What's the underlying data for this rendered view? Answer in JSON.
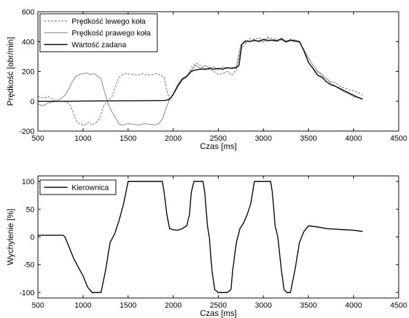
{
  "chart_data": [
    {
      "type": "line",
      "xlabel": "Czas [ms]",
      "ylabel": "Prędkość [obr/min]",
      "xlim": [
        500,
        4500
      ],
      "ylim": [
        -200,
        600
      ],
      "xticks": [
        500,
        1000,
        1500,
        2000,
        2500,
        3000,
        3500,
        4000,
        4500
      ],
      "yticks": [
        -200,
        0,
        200,
        400,
        600
      ],
      "grid": false,
      "legend_position": "top-left",
      "series": [
        {
          "name": "Prędkość lewego koła",
          "color": "#808080",
          "dash": "dashed",
          "x": [
            500,
            560,
            620,
            700,
            780,
            820,
            860,
            900,
            940,
            980,
            1020,
            1060,
            1100,
            1140,
            1180,
            1230,
            1280,
            1330,
            1360,
            1400,
            1440,
            1480,
            1540,
            1600,
            1660,
            1720,
            1780,
            1820,
            1860,
            1900,
            1930,
            1960,
            2000,
            2050,
            2100,
            2150,
            2200,
            2250,
            2300,
            2350,
            2400,
            2450,
            2500,
            2550,
            2600,
            2650,
            2700,
            2750,
            2800,
            2850,
            2900,
            2950,
            3000,
            3050,
            3100,
            3150,
            3200,
            3250,
            3300,
            3350,
            3400,
            3450,
            3500,
            3550,
            3600,
            3650,
            3700,
            3750,
            3800,
            3850,
            3900,
            3950,
            4000,
            4050,
            4100
          ],
          "y": [
            35,
            20,
            30,
            0,
            0,
            -5,
            -30,
            -90,
            -145,
            -155,
            -160,
            -140,
            -160,
            -145,
            -120,
            -30,
            5,
            40,
            100,
            160,
            180,
            185,
            180,
            175,
            185,
            175,
            180,
            185,
            175,
            160,
            70,
            10,
            50,
            110,
            150,
            165,
            220,
            255,
            240,
            210,
            215,
            200,
            180,
            185,
            200,
            175,
            210,
            350,
            385,
            420,
            415,
            425,
            405,
            430,
            420,
            410,
            415,
            400,
            415,
            410,
            400,
            330,
            260,
            220,
            195,
            185,
            150,
            130,
            125,
            100,
            90,
            75,
            70,
            60,
            40
          ]
        },
        {
          "name": "Prędkość prawego koła",
          "color": "#969696",
          "dash": "solid",
          "x": [
            500,
            560,
            620,
            700,
            760,
            800,
            840,
            880,
            920,
            960,
            1000,
            1040,
            1080,
            1120,
            1160,
            1200,
            1240,
            1280,
            1320,
            1360,
            1400,
            1440,
            1500,
            1560,
            1620,
            1680,
            1740,
            1800,
            1840,
            1880,
            1920,
            1950,
            2000,
            2050,
            2100,
            2150,
            2200,
            2250,
            2300,
            2350,
            2400,
            2450,
            2500,
            2550,
            2600,
            2650,
            2700,
            2750,
            2800,
            2850,
            2900,
            2950,
            3000,
            3050,
            3100,
            3150,
            3200,
            3250,
            3300,
            3350,
            3400,
            3450,
            3500,
            3550,
            3600,
            3650,
            3700,
            3750,
            3800,
            3850,
            3900,
            3950,
            4000,
            4050,
            4100
          ],
          "y": [
            -20,
            -30,
            -10,
            0,
            20,
            40,
            80,
            130,
            165,
            180,
            185,
            190,
            180,
            185,
            170,
            150,
            60,
            -20,
            -70,
            -110,
            -155,
            -160,
            -150,
            -155,
            -160,
            -150,
            -155,
            -160,
            -150,
            -120,
            -50,
            0,
            45,
            115,
            155,
            170,
            205,
            240,
            220,
            240,
            225,
            230,
            210,
            230,
            220,
            225,
            230,
            380,
            395,
            405,
            400,
            410,
            395,
            420,
            405,
            400,
            410,
            395,
            405,
            400,
            395,
            340,
            290,
            240,
            205,
            170,
            150,
            120,
            100,
            80,
            60,
            50,
            30,
            25,
            10
          ]
        },
        {
          "name": "Wartość zadana",
          "color": "#000000",
          "dash": "solid",
          "x": [
            500,
            800,
            1200,
            1600,
            1900,
            1950,
            1975,
            2000,
            2050,
            2100,
            2150,
            2200,
            2250,
            2300,
            2350,
            2400,
            2450,
            2500,
            2550,
            2600,
            2650,
            2700,
            2730,
            2760,
            2800,
            2850,
            2900,
            2950,
            3000,
            3050,
            3100,
            3150,
            3200,
            3250,
            3300,
            3350,
            3400,
            3450,
            3500,
            3550,
            3600,
            3650,
            3700,
            3750,
            3800,
            3850,
            3900,
            3950,
            4000,
            4050,
            4100
          ],
          "y": [
            0,
            0,
            2,
            3,
            5,
            10,
            25,
            45,
            100,
            145,
            165,
            200,
            210,
            215,
            215,
            220,
            215,
            220,
            215,
            225,
            220,
            225,
            240,
            380,
            405,
            400,
            410,
            400,
            415,
            405,
            410,
            405,
            420,
            400,
            410,
            405,
            400,
            340,
            260,
            220,
            175,
            160,
            130,
            110,
            100,
            85,
            70,
            55,
            40,
            25,
            15
          ]
        }
      ]
    },
    {
      "type": "line",
      "xlabel": "Czas [ms]",
      "ylabel": "Wychylenie [%]",
      "xlim": [
        500,
        4500
      ],
      "ylim": [
        -110,
        110
      ],
      "xticks": [
        500,
        1000,
        1500,
        2000,
        2500,
        3000,
        3500,
        4000,
        4500
      ],
      "yticks": [
        -100,
        -50,
        0,
        50,
        100
      ],
      "grid": false,
      "legend_position": "top-left",
      "series": [
        {
          "name": "Kierownica",
          "color": "#000000",
          "dash": "solid",
          "x": [
            500,
            600,
            700,
            780,
            800,
            850,
            900,
            950,
            1000,
            1050,
            1100,
            1150,
            1200,
            1250,
            1300,
            1350,
            1400,
            1450,
            1500,
            1550,
            1600,
            1650,
            1700,
            1750,
            1800,
            1850,
            1880,
            1900,
            1930,
            1960,
            2000,
            2050,
            2100,
            2150,
            2180,
            2200,
            2230,
            2260,
            2300,
            2330,
            2350,
            2380,
            2400,
            2430,
            2460,
            2500,
            2540,
            2600,
            2640,
            2660,
            2700,
            2740,
            2780,
            2820,
            2860,
            2900,
            2950,
            3000,
            3050,
            3080,
            3100,
            3130,
            3160,
            3200,
            3230,
            3260,
            3300,
            3350,
            3400,
            3450,
            3500,
            3600,
            3700,
            3800,
            3900,
            4000,
            4100
          ],
          "y": [
            3,
            3,
            3,
            3,
            0,
            -20,
            -40,
            -55,
            -70,
            -90,
            -100,
            -100,
            -100,
            -60,
            -10,
            5,
            30,
            60,
            100,
            100,
            100,
            100,
            100,
            100,
            100,
            100,
            100,
            80,
            40,
            15,
            13,
            12,
            15,
            20,
            40,
            80,
            100,
            100,
            100,
            100,
            80,
            20,
            0,
            -60,
            -95,
            -100,
            -100,
            -100,
            -95,
            -60,
            -10,
            15,
            25,
            40,
            60,
            100,
            100,
            100,
            100,
            100,
            80,
            20,
            0,
            -60,
            -95,
            -100,
            -100,
            -60,
            -10,
            10,
            20,
            18,
            15,
            14,
            13,
            12,
            10
          ]
        }
      ]
    }
  ]
}
